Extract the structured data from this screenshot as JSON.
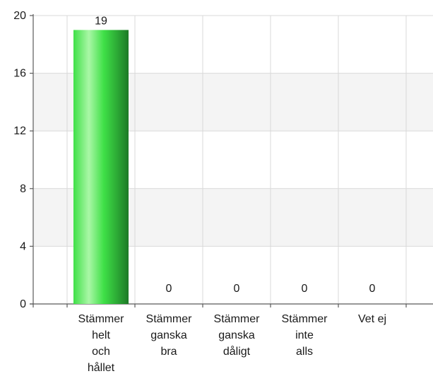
{
  "chart_data": {
    "type": "bar",
    "categories": [
      [
        "Stämmer",
        "helt",
        "och",
        "hållet"
      ],
      [
        "Stämmer",
        "ganska",
        "bra"
      ],
      [
        "Stämmer",
        "ganska",
        "dåligt"
      ],
      [
        "Stämmer",
        "inte",
        "alls"
      ],
      [
        "Vet ej"
      ]
    ],
    "values": [
      19,
      0,
      0,
      0,
      0
    ],
    "data_labels": [
      "19",
      "0",
      "0",
      "0",
      "0"
    ],
    "ylim": [
      0,
      20
    ],
    "yticks": [
      0,
      4,
      8,
      12,
      16,
      20
    ],
    "grid": true,
    "title": "",
    "xlabel": "",
    "ylabel": "",
    "colors": {
      "bar_dark": "#1c7a26",
      "bar_mid": "#3fe047",
      "bar_light": "#a9f7a6",
      "band": "#f4f4f4",
      "grid": "#d9d9d9",
      "axis": "#5a5a5a"
    }
  }
}
